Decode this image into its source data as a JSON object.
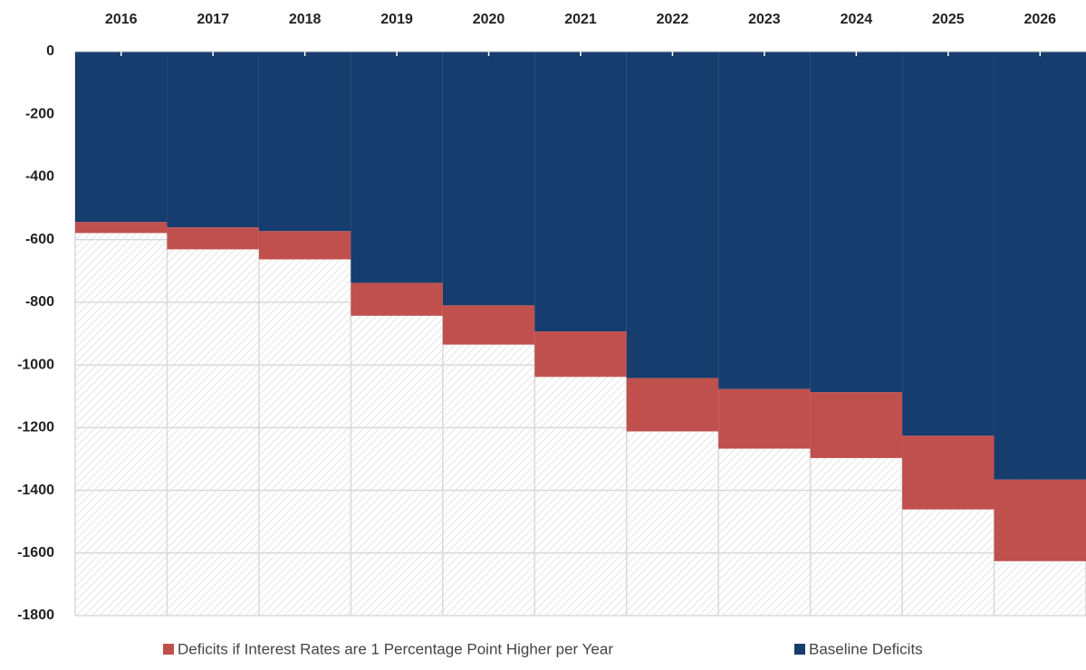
{
  "chart_data": {
    "type": "bar",
    "stacked": true,
    "categories": [
      "2016",
      "2017",
      "2018",
      "2019",
      "2020",
      "2021",
      "2022",
      "2023",
      "2024",
      "2025",
      "2026"
    ],
    "series": [
      {
        "name": "Deficits if Interest Rates are 1 Percentage Point Higher per Year",
        "color": "#c0504d",
        "values": [
          -35,
          -70,
          -90,
          -105,
          -125,
          -145,
          -170,
          -190,
          -210,
          -235,
          -260
        ]
      },
      {
        "name": "Baseline Deficits",
        "color": "#173c6e",
        "values": [
          -544,
          -561,
          -573,
          -738,
          -810,
          -893,
          -1042,
          -1077,
          -1087,
          -1226,
          -1366
        ]
      }
    ],
    "ylim": [
      -1800,
      0
    ],
    "yticks": [
      0,
      -200,
      -400,
      -600,
      -800,
      -1000,
      -1200,
      -1400,
      -1600,
      -1800
    ],
    "grid": true,
    "legend": "bottom"
  }
}
